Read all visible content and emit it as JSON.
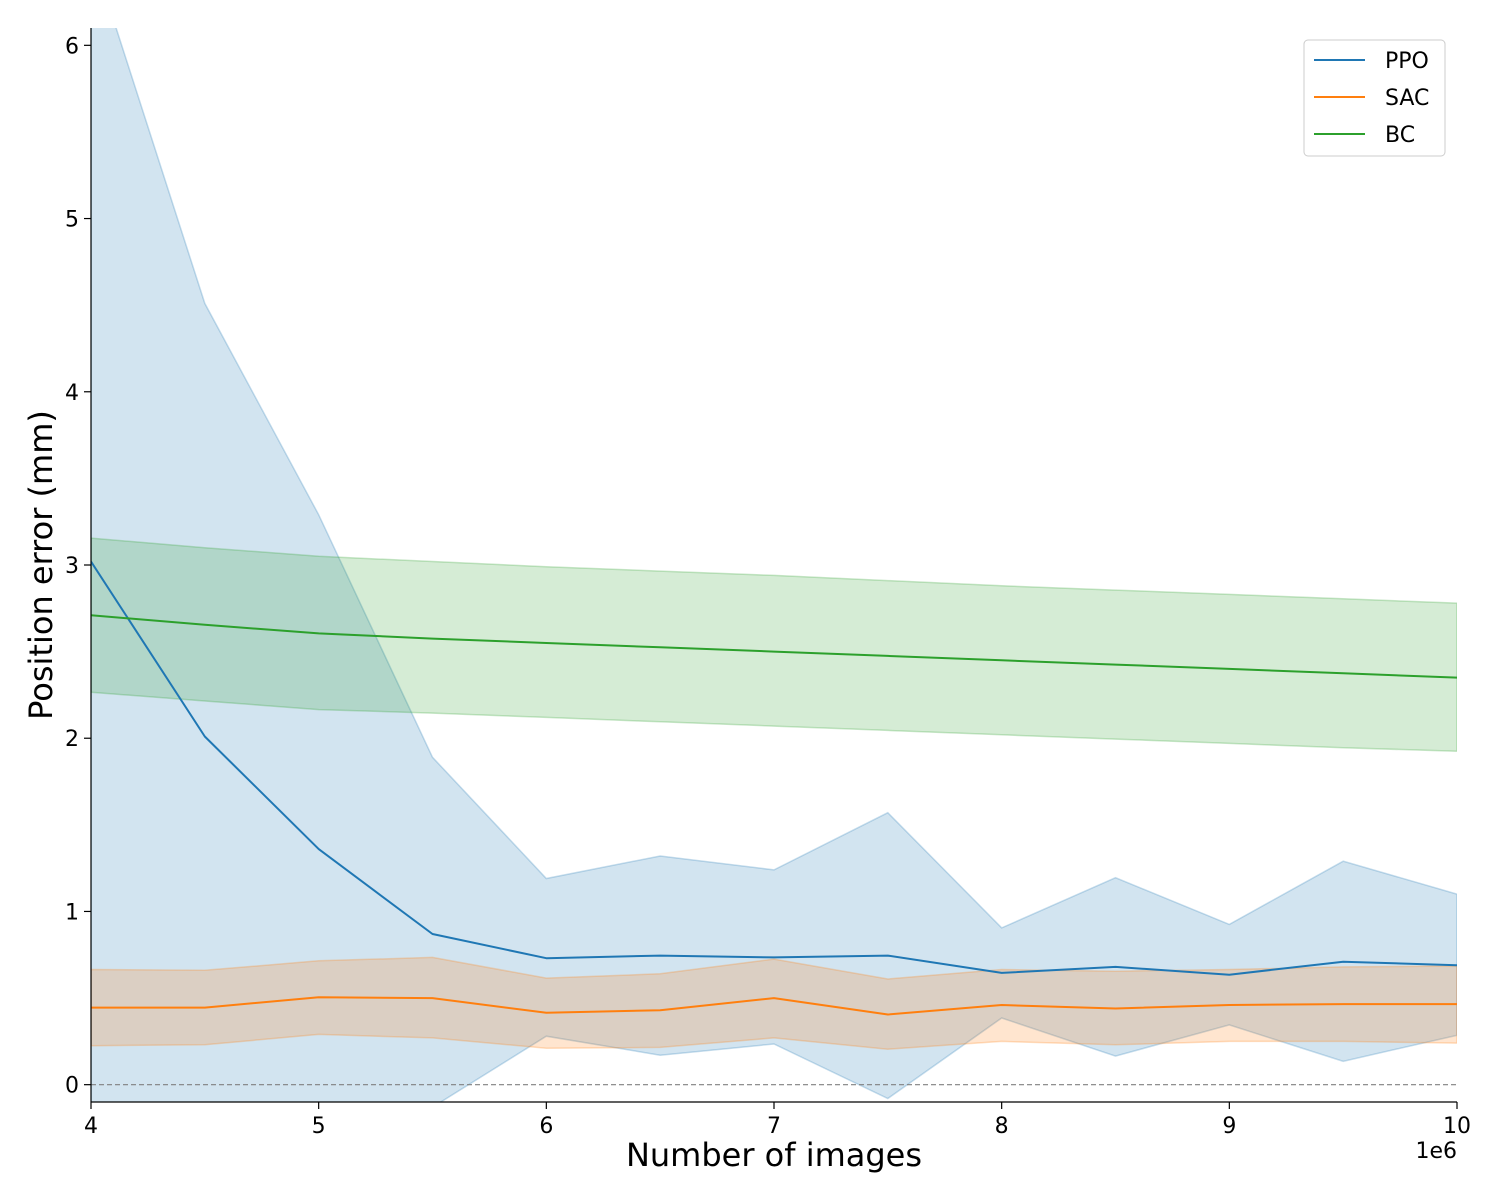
{
  "chart_data": {
    "type": "line",
    "title": "",
    "xlabel": "Number of images",
    "ylabel": "Position error (mm)",
    "x_offset_text": "1e6",
    "xlim": [
      4,
      10
    ],
    "ylim": [
      -0.1,
      6.1
    ],
    "x_ticks": [
      4,
      5,
      6,
      7,
      8,
      9,
      10
    ],
    "y_ticks": [
      0,
      1,
      2,
      3,
      4,
      5,
      6
    ],
    "grid": false,
    "legend_position": "top-right",
    "reference_line": {
      "y": 0,
      "style": "dashed",
      "color": "#808080"
    },
    "x": [
      4,
      4.5,
      5,
      5.5,
      6,
      6.5,
      7,
      7.5,
      8,
      8.5,
      9,
      9.5,
      10
    ],
    "series": [
      {
        "name": "PPO",
        "color": "#1f77b4",
        "values": [
          3.02,
          2.01,
          1.36,
          0.87,
          0.73,
          0.745,
          0.735,
          0.745,
          0.645,
          0.68,
          0.635,
          0.71,
          0.69
        ],
        "lower": [
          -0.5,
          -0.5,
          -0.55,
          -0.13,
          0.28,
          0.17,
          0.235,
          -0.08,
          0.385,
          0.165,
          0.345,
          0.135,
          0.285
        ],
        "upper": [
          6.55,
          4.51,
          3.29,
          1.89,
          1.19,
          1.32,
          1.24,
          1.57,
          0.905,
          1.195,
          0.925,
          1.29,
          1.1
        ]
      },
      {
        "name": "SAC",
        "color": "#ff7f0e",
        "values": [
          0.445,
          0.445,
          0.505,
          0.5,
          0.415,
          0.43,
          0.5,
          0.405,
          0.46,
          0.44,
          0.46,
          0.465,
          0.465
        ],
        "lower": [
          0.225,
          0.23,
          0.29,
          0.27,
          0.21,
          0.215,
          0.27,
          0.205,
          0.25,
          0.23,
          0.25,
          0.25,
          0.24
        ],
        "upper": [
          0.665,
          0.66,
          0.715,
          0.735,
          0.615,
          0.64,
          0.725,
          0.61,
          0.665,
          0.655,
          0.665,
          0.68,
          0.685
        ]
      },
      {
        "name": "BC",
        "color": "#2ca02c",
        "values": [
          2.71,
          2.655,
          2.605,
          2.575,
          2.55,
          2.525,
          2.5,
          2.475,
          2.45,
          2.425,
          2.4,
          2.375,
          2.35
        ],
        "lower": [
          2.265,
          2.215,
          2.165,
          2.145,
          2.12,
          2.095,
          2.07,
          2.045,
          2.02,
          1.995,
          1.97,
          1.945,
          1.925
        ],
        "upper": [
          3.155,
          3.1,
          3.05,
          3.02,
          2.99,
          2.965,
          2.94,
          2.91,
          2.88,
          2.855,
          2.83,
          2.805,
          2.78
        ]
      }
    ]
  }
}
